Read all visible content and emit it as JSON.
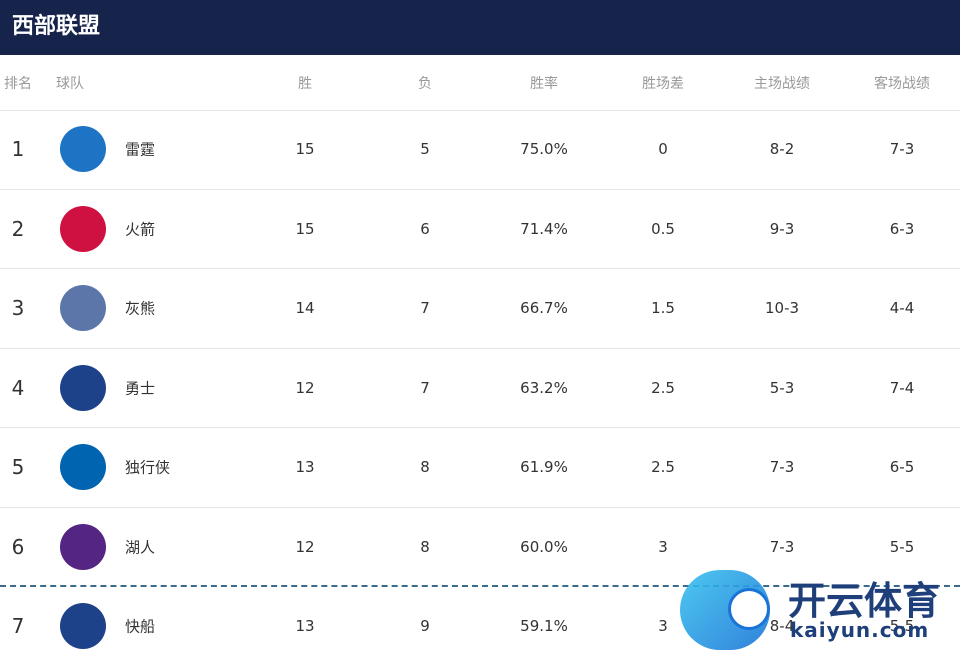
{
  "header": {
    "title": "西部联盟"
  },
  "table": {
    "columns": [
      "排名",
      "球队",
      "胜",
      "负",
      "胜率",
      "胜场差",
      "主场战绩",
      "客场战绩"
    ],
    "rows": [
      [
        "1",
        "雷霆",
        "15",
        "5",
        "75.0%",
        "0",
        "8-2",
        "7-3"
      ],
      [
        "2",
        "火箭",
        "15",
        "6",
        "71.4%",
        "0.5",
        "9-3",
        "6-3"
      ],
      [
        "3",
        "灰熊",
        "14",
        "7",
        "66.7%",
        "1.5",
        "10-3",
        "4-4"
      ],
      [
        "4",
        "勇士",
        "12",
        "7",
        "63.2%",
        "2.5",
        "5-3",
        "7-4"
      ],
      [
        "5",
        "独行侠",
        "13",
        "8",
        "61.9%",
        "2.5",
        "7-3",
        "6-5"
      ],
      [
        "6",
        "湖人",
        "12",
        "8",
        "60.0%",
        "3",
        "7-3",
        "5-5"
      ],
      [
        "7",
        "快船",
        "13",
        "9",
        "59.1%",
        "3",
        "8-4",
        "5-5"
      ]
    ]
  },
  "watermark": {
    "brand": "开云体育",
    "site": "kaiyun.com"
  }
}
